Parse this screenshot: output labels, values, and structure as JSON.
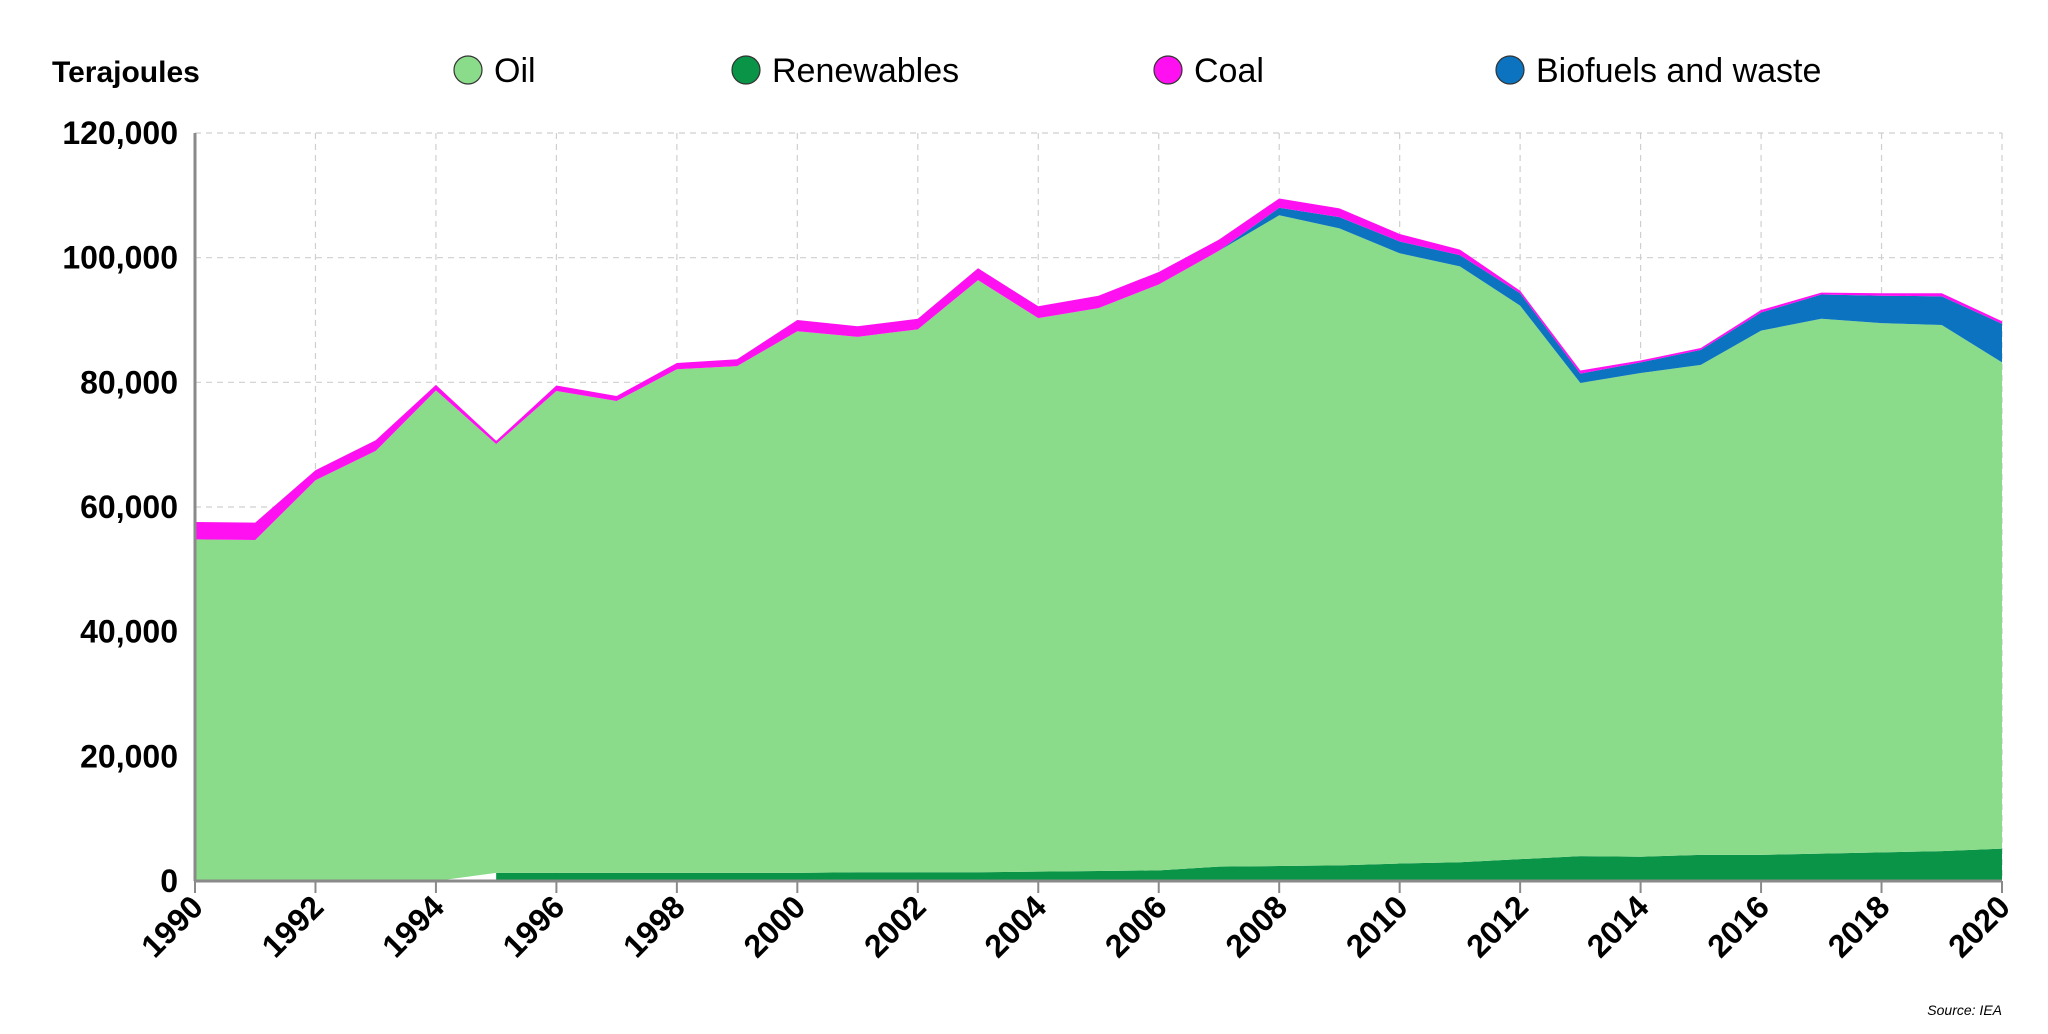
{
  "chart_data": {
    "type": "area",
    "stacked": true,
    "unit_label": "Terajoules",
    "source": "Source: IEA",
    "x": [
      1990,
      1991,
      1992,
      1993,
      1994,
      1995,
      1996,
      1997,
      1998,
      1999,
      2000,
      2001,
      2002,
      2003,
      2004,
      2005,
      2006,
      2007,
      2008,
      2009,
      2010,
      2011,
      2012,
      2013,
      2014,
      2015,
      2016,
      2017,
      2018,
      2019,
      2020
    ],
    "x_ticks": [
      1990,
      1992,
      1994,
      1996,
      1998,
      2000,
      2002,
      2004,
      2006,
      2008,
      2010,
      2012,
      2014,
      2016,
      2018,
      2020
    ],
    "y_ticks": [
      0,
      20000,
      40000,
      60000,
      80000,
      100000,
      120000
    ],
    "y_tick_labels": [
      "0",
      "20,000",
      "40,000",
      "60,000",
      "80,000",
      "100,000",
      "120,000"
    ],
    "ylim": [
      0,
      120000
    ],
    "xlim": [
      1990,
      2020
    ],
    "grid": true,
    "legend_position": "top",
    "series": [
      {
        "name": "Renewables",
        "color": "#0a9447",
        "values": [
          null,
          null,
          null,
          null,
          null,
          1300,
          1300,
          1300,
          1300,
          1300,
          1300,
          1400,
          1400,
          1400,
          1500,
          1600,
          1700,
          2300,
          2400,
          2500,
          2800,
          3000,
          3500,
          4000,
          3900,
          4200,
          4200,
          4400,
          4600,
          4800,
          5200
        ]
      },
      {
        "name": "Oil",
        "color": "#8adc8a",
        "values": [
          54800,
          54700,
          64300,
          69000,
          78700,
          68800,
          77300,
          75700,
          80800,
          81300,
          86900,
          85900,
          87100,
          95000,
          88800,
          90300,
          94000,
          98800,
          104400,
          102200,
          97900,
          95600,
          88800,
          75900,
          77600,
          78600,
          84100,
          85800,
          84900,
          84400,
          78000
        ]
      },
      {
        "name": "Biofuels and waste",
        "color": "#0b73c0",
        "values": [
          0,
          0,
          0,
          0,
          0,
          0,
          0,
          0,
          0,
          0,
          0,
          0,
          0,
          0,
          0,
          0,
          0,
          0,
          1200,
          1800,
          1900,
          1800,
          2000,
          1500,
          1700,
          2400,
          2900,
          3900,
          4400,
          4600,
          6200
        ]
      },
      {
        "name": "Coal",
        "color": "#ff10f0",
        "values": [
          2800,
          2800,
          1600,
          1700,
          900,
          500,
          900,
          800,
          1000,
          1100,
          1800,
          1700,
          1700,
          1900,
          1900,
          2000,
          2000,
          1800,
          1500,
          1400,
          1200,
          900,
          400,
          500,
          300,
          300,
          400,
          300,
          400,
          500,
          400
        ]
      }
    ]
  }
}
